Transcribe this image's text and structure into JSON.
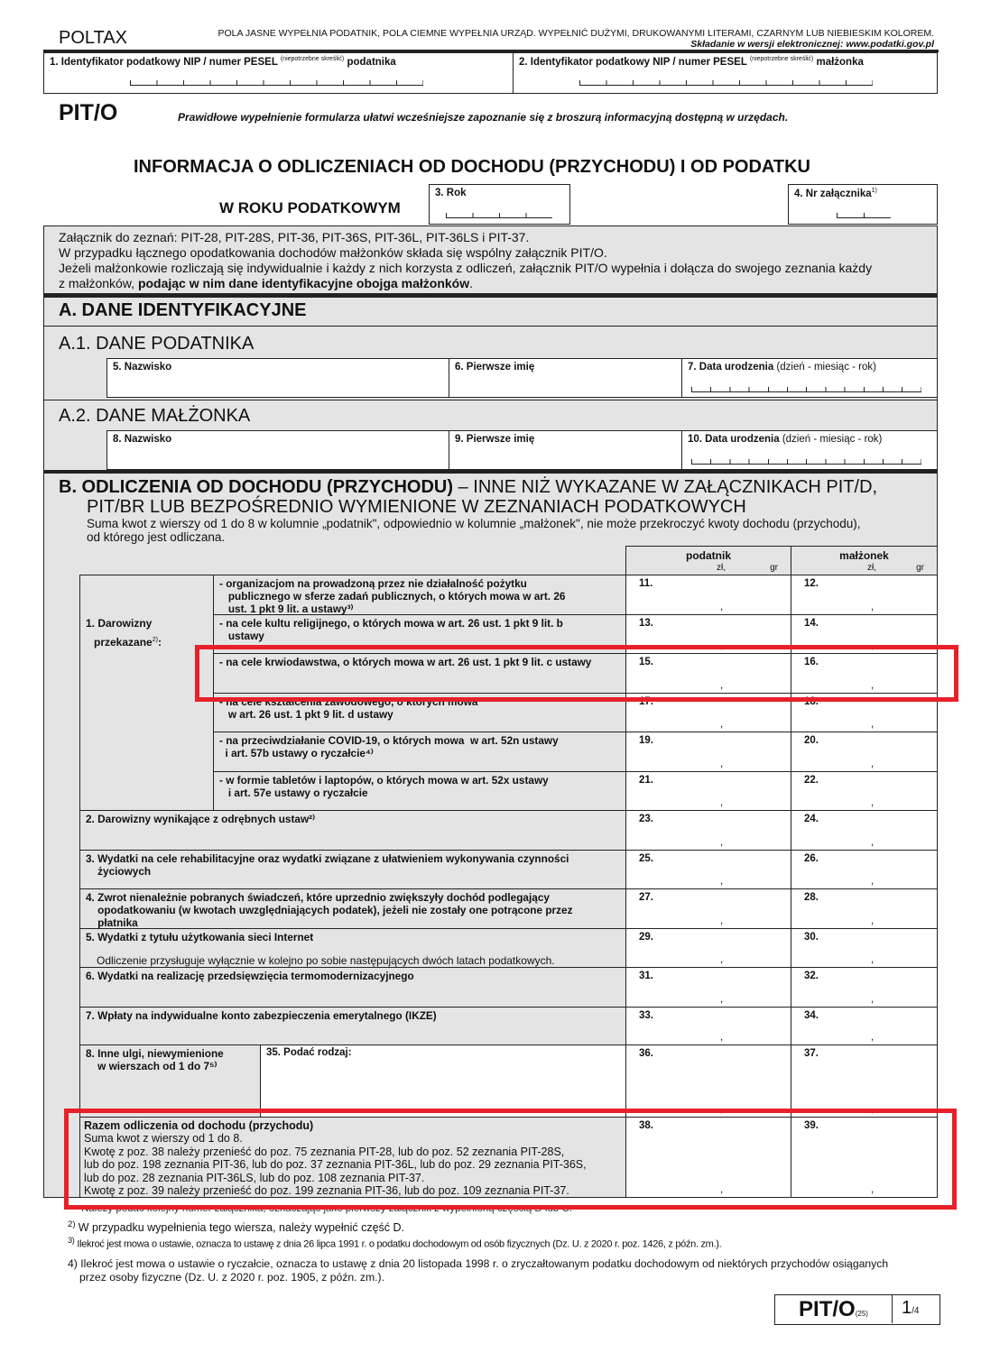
{
  "header": {
    "brand": "POLTAX",
    "instructions": "POLA JASNE WYPEŁNIA PODATNIK, POLA CIEMNE WYPEŁNIA URZĄD. WYPEŁNIĆ DUŻYMI, DRUKOWANYMI LITERAMI, CZARNYM LUB NIEBIESKIM KOLOREM.",
    "electronic": "Składanie w wersji elektronicznej: www.podatki.gov.pl"
  },
  "id_fields": [
    {
      "label": "1. Identyfikator podatkowy NIP / numer PESEL",
      "note": "(niepotrzebne skreślić)",
      "suffix": "podatnika"
    },
    {
      "label": "2. Identyfikator podatkowy NIP / numer PESEL",
      "note": "(niepotrzebne skreślić)",
      "suffix": "małżonka"
    }
  ],
  "form": {
    "code": "PIT/O",
    "hint": "Prawidłowe wypełnienie formularza ułatwi wcześniejsze zapoznanie się z broszurą informacyjną dostępną w urzędach.",
    "title": "INFORMACJA O ODLICZENIACH OD DOCHODU (PRZYCHODU) I OD PODATKU",
    "subtitle": "W ROKU PODATKOWYM",
    "year_label": "3. Rok",
    "attachment_label": "4. Nr załącznika",
    "attachment_sup": "1)"
  },
  "info": {
    "l1": "Załącznik do zeznań: PIT-28, PIT-28S, PIT-36, PIT-36S, PIT-36L, PIT-36LS i PIT-37.",
    "l2": "W przypadku łącznego opodatkowania dochodów małżonków składa się wspólny załącznik PIT/O.",
    "l3": "Jeżeli małżonkowie rozliczają się indywidualnie i każdy z nich korzysta z odliczeń, załącznik PIT/O wypełnia i dołącza do swojego zeznania każdy",
    "l4a": "z małżonków, ",
    "l4b": "podając w nim dane identyfikacyjne obojga małżonków",
    "l4c": "."
  },
  "sectionA": {
    "title": "A. DANE IDENTYFIKACYJNE",
    "a1": "A.1. DANE PODATNIKA",
    "a2": "A.2. DANE MAŁŻONKA",
    "f5": "5. Nazwisko",
    "f6": "6. Pierwsze imię",
    "f7": "7. Data urodzenia",
    "f7n": "(dzień - miesiąc - rok)",
    "f8": "8. Nazwisko",
    "f9": "9. Pierwsze imię",
    "f10": "10. Data urodzenia",
    "f10n": "(dzień - miesiąc - rok)"
  },
  "sectionB": {
    "title": "B. ODLICZENIA OD DOCHODU (PRZYCHODU)",
    "title_rest": " – INNE NIŻ WYKAZANE W ZAŁĄCZNIKACH PIT/D,",
    "title2": "PIT/BR LUB BEZPOŚREDNIO WYMIENIONE W ZEZNANIACH PODATKOWYCH",
    "note1": "Suma kwot z wierszy od 1 do 8 w kolumnie „podatnik\", odpowiednio w kolumnie „małżonek\", nie może przekroczyć kwoty dochodu (przychodu),",
    "note2": "od którego jest odliczana.",
    "col_podatnik": "podatnik",
    "col_malzonek": "małżonek",
    "zl": "zł,",
    "gr": "gr",
    "donations_label": "1. Darowizny",
    "donations_label2": "przekazane",
    "donations_sup": "2)",
    "rows": [
      {
        "text": "- organizacjom na prowadzoną przez nie działalność pożytku\n   publicznego w sferze zadań publicznych, o których mowa w art. 26\n   ust. 1 pkt 9 lit. a ustawy³⁾",
        "a": "11.",
        "b": "12."
      },
      {
        "text": "- na cele kultu religijnego, o których mowa w art. 26 ust. 1 pkt 9 lit. b\n   ustawy",
        "a": "13.",
        "b": "14."
      },
      {
        "text": "- na cele krwiodawstwa, o których mowa w art. 26 ust. 1 pkt 9 lit. c ustawy",
        "a": "15.",
        "b": "16."
      },
      {
        "text": "- na cele kształcenia zawodowego, o których mowa\n   w art. 26 ust. 1 pkt 9 lit. d ustawy",
        "a": "17.",
        "b": "18."
      },
      {
        "text": "- na przeciwdziałanie COVID-19, o których mowa  w art. 52n ustawy\n  i art. 57b ustawy o ryczałcie⁴⁾",
        "a": "19.",
        "b": "20."
      },
      {
        "text": "- w formie tabletów i laptopów, o których mowa w art. 52x ustawy\n   i art. 57e ustawy o ryczałcie",
        "a": "21.",
        "b": "22."
      },
      {
        "text": "2. Darowizny wynikające z odrębnych ustaw²⁾",
        "a": "23.",
        "b": "24."
      },
      {
        "text": "3. Wydatki na cele rehabilitacyjne oraz wydatki związane z ułatwieniem wykonywania czynności\n    życiowych",
        "a": "25.",
        "b": "26."
      },
      {
        "text": "4. Zwrot nienależnie pobranych świadczeń, które uprzednio zwiększyły dochód podlegający\n    opodatkowaniu (w kwotach uwzględniających podatek), jeżeli nie zostały one potrącone przez\n    płatnika",
        "a": "27.",
        "b": "28."
      },
      {
        "text": "5. Wydatki z tytułu użytkowania sieci Internet",
        "a": "29.",
        "b": "30.",
        "sub": "Odliczenie przysługuje wyłącznie w kolejno po sobie następujących dwóch latach podatkowych."
      },
      {
        "text": "6. Wydatki na realizację przedsięwzięcia termomodernizacyjnego",
        "a": "31.",
        "b": "32."
      },
      {
        "text": "7. Wpłaty na indywidualne konto zabezpieczenia emerytalnego (IKZE)",
        "a": "33.",
        "b": "34."
      },
      {
        "text": "8. Inne ulgi, niewymienione\n    w wierszach od 1 do 7⁵⁾",
        "a": "36.",
        "b": "37.",
        "kind": "35. Podać rodzaj:"
      }
    ],
    "total": {
      "title": "Razem odliczenia od dochodu (przychodu)",
      "l1": "Suma kwot z wierszy od 1 do 8.",
      "l2": "Kwotę z poz. 38 należy przenieść do poz. 75 zeznania PIT-28, lub do poz. 52 zeznania PIT-28S,",
      "l3": "lub do poz. 198 zeznania PIT-36, lub do poz. 37 zeznania PIT-36L, lub do poz. 29 zeznania PIT-36S,",
      "l4": "lub do poz. 28 zeznania PIT-36LS, lub do poz. 108 zeznania PIT-37.",
      "l5": "Kwotę z poz. 39 należy przenieść do poz. 199 zeznania PIT-36, lub do poz. 109 zeznania PIT-37.",
      "a": "38.",
      "b": "39."
    }
  },
  "footnotes": [
    {
      "n": "1)",
      "t": "Należy podać kolejny numer załącznika, oznaczając jako pierwszy załącznik z wypełnioną częścią D lub C."
    },
    {
      "n": "2)",
      "t": "W przypadku wypełnienia tego wiersza, należy wypełnić część D."
    },
    {
      "n": "3)",
      "t": "Ilekroć jest mowa o ustawie, oznacza to ustawę z dnia 26 lipca 1991 r. o podatku dochodowym od osób fizycznych (Dz. U. z 2020 r. poz. 1426, z późn. zm.)."
    },
    {
      "n": "4)",
      "t": "Ilekroć jest mowa o ustawie o ryczałcie, oznacza to ustawę z dnia 20 listopada 1998 r. o zryczałtowanym podatku dochodowym od niektórych przychodów osiąganych",
      "t2": "przez osoby fizyczne (Dz. U. z 2020 r. poz. 1905, z późn. zm.)."
    }
  ],
  "footer": {
    "code": "PIT/O",
    "version": "(25)",
    "page": "1",
    "pages": "/4"
  },
  "colors": {
    "highlight": "#e8202a",
    "gray_field": "#e4e4e4"
  }
}
